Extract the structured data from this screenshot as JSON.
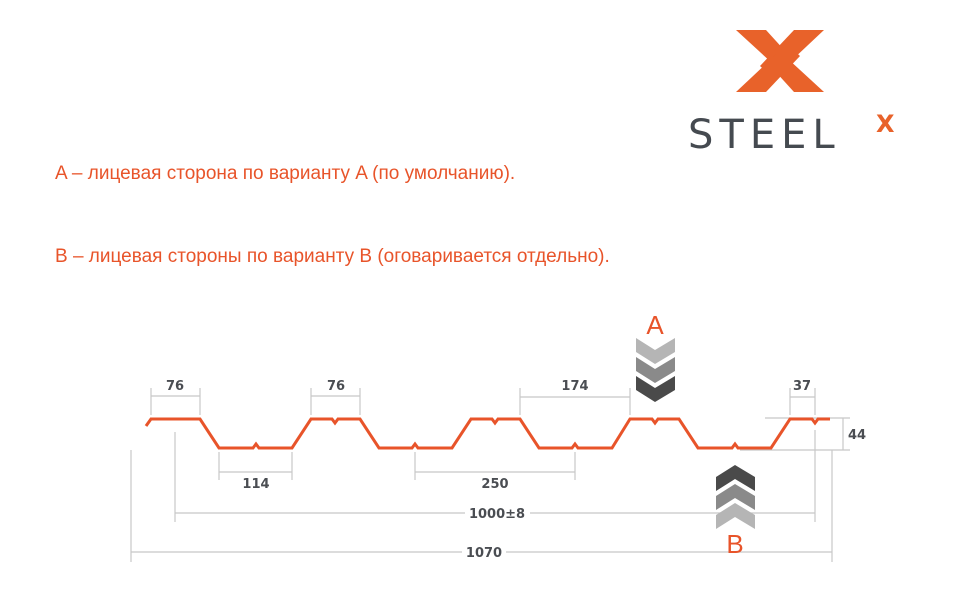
{
  "logo": {
    "brand": "STEEL",
    "superscript": "X",
    "color_orange": "#e8622a",
    "color_dark": "#454a50"
  },
  "descriptions": [
    "A – лицевая сторона по варианту A (по умолчанию).",
    "B – лицевая стороны по варианту B (оговаривается отдельно)."
  ],
  "diagram": {
    "profile_color": "#e8542a",
    "dimensions": {
      "top_width_1": "76",
      "top_width_2": "76",
      "rib_gap": "174",
      "edge": "37",
      "height": "44",
      "bottom_width": "114",
      "pitch": "250",
      "useful_width": "1000±8",
      "total_width": "1070"
    },
    "side_a_label": "A",
    "side_b_label": "B",
    "chevron_colors": [
      "#b5b5b5",
      "#8a8a8a",
      "#4a4a4a"
    ]
  }
}
